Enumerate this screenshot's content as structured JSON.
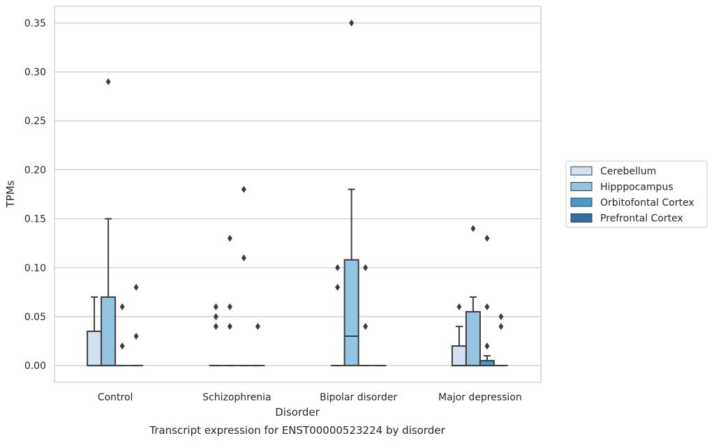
{
  "chart_data": {
    "type": "box",
    "title": "",
    "caption": "Transcript expression for ENST00000523224 by disorder",
    "xlabel": "Disorder",
    "ylabel": "TPMs",
    "ylim": [
      -0.017,
      0.367
    ],
    "yticks": [
      "0.00",
      "0.05",
      "0.10",
      "0.15",
      "0.20",
      "0.25",
      "0.30",
      "0.35"
    ],
    "grid": "horizontal",
    "legend_position": "right",
    "categories": [
      "Control",
      "Schizophrenia",
      "Bipolar disorder",
      "Major depression"
    ],
    "series": [
      {
        "name": "Cerebellum",
        "color": "#d0e1f2"
      },
      {
        "name": "Hipppocampus",
        "color": "#94c4df"
      },
      {
        "name": "Orbitofontal Cortex",
        "color": "#4a98c9"
      },
      {
        "name": "Prefrontal Cortex",
        "color": "#2e6fa9"
      }
    ],
    "boxes": [
      [
        {
          "q1": 0,
          "median": 0,
          "q3": 0.035,
          "whisker_low": 0,
          "whisker_high": 0.07,
          "outliers": []
        },
        {
          "q1": 0,
          "median": 0,
          "q3": 0.07,
          "whisker_low": 0,
          "whisker_high": 0.15,
          "outliers": [
            0.29
          ]
        },
        {
          "q1": 0,
          "median": 0,
          "q3": 0,
          "whisker_low": 0,
          "whisker_high": 0,
          "outliers": [
            0.06,
            0.02
          ]
        },
        {
          "q1": 0,
          "median": 0,
          "q3": 0,
          "whisker_low": 0,
          "whisker_high": 0,
          "outliers": [
            0.08,
            0.03
          ]
        }
      ],
      [
        {
          "q1": 0,
          "median": 0,
          "q3": 0,
          "whisker_low": 0,
          "whisker_high": 0,
          "outliers": [
            0.06,
            0.05,
            0.04
          ]
        },
        {
          "q1": 0,
          "median": 0,
          "q3": 0,
          "whisker_low": 0,
          "whisker_high": 0,
          "outliers": [
            0.13,
            0.06,
            0.04
          ]
        },
        {
          "q1": 0,
          "median": 0,
          "q3": 0,
          "whisker_low": 0,
          "whisker_high": 0,
          "outliers": [
            0.18,
            0.11
          ]
        },
        {
          "q1": 0,
          "median": 0,
          "q3": 0,
          "whisker_low": 0,
          "whisker_high": 0,
          "outliers": [
            0.04
          ]
        }
      ],
      [
        {
          "q1": 0,
          "median": 0,
          "q3": 0,
          "whisker_low": 0,
          "whisker_high": 0,
          "outliers": [
            0.1,
            0.08
          ]
        },
        {
          "q1": 0,
          "median": 0.03,
          "q3": 0.108,
          "whisker_low": 0,
          "whisker_high": 0.18,
          "outliers": [
            0.35
          ]
        },
        {
          "q1": 0,
          "median": 0,
          "q3": 0,
          "whisker_low": 0,
          "whisker_high": 0,
          "outliers": [
            0.1,
            0.04
          ]
        },
        {
          "q1": 0,
          "median": 0,
          "q3": 0,
          "whisker_low": 0,
          "whisker_high": 0,
          "outliers": []
        }
      ],
      [
        {
          "q1": 0,
          "median": 0,
          "q3": 0.02,
          "whisker_low": 0,
          "whisker_high": 0.04,
          "outliers": [
            0.06
          ]
        },
        {
          "q1": 0,
          "median": 0,
          "q3": 0.055,
          "whisker_low": 0,
          "whisker_high": 0.07,
          "outliers": [
            0.14
          ]
        },
        {
          "q1": 0,
          "median": 0,
          "q3": 0.005,
          "whisker_low": 0,
          "whisker_high": 0.01,
          "outliers": [
            0.06,
            0.02,
            0.13
          ]
        },
        {
          "q1": 0,
          "median": 0,
          "q3": 0,
          "whisker_low": 0,
          "whisker_high": 0,
          "outliers": [
            0.05,
            0.04
          ]
        }
      ]
    ]
  }
}
